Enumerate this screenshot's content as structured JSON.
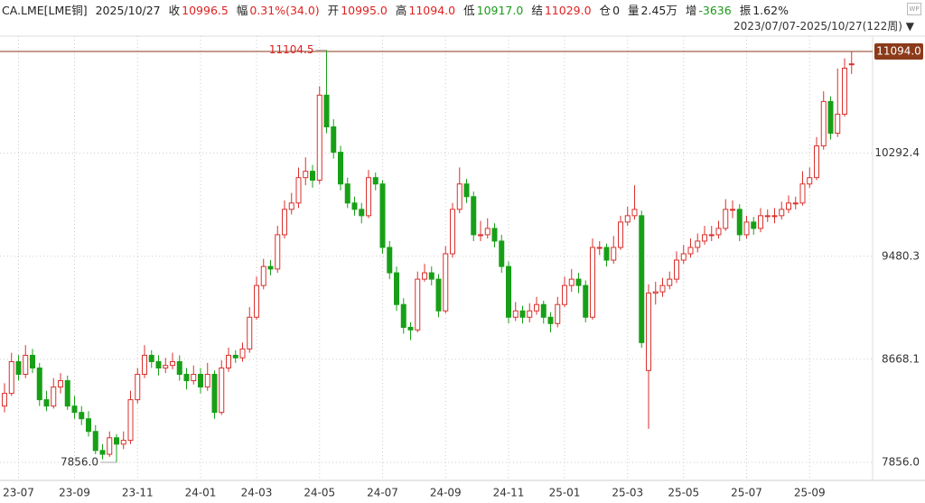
{
  "header": {
    "symbol": "CA.LME[LME铜]",
    "date": "2025/10/27",
    "fields": [
      {
        "label": "收",
        "value": "10996.5",
        "tone": "red"
      },
      {
        "label": "幅",
        "value": "0.31%(34.0)",
        "tone": "red"
      },
      {
        "label": "开",
        "value": "10995.0",
        "tone": "red"
      },
      {
        "label": "高",
        "value": "11094.0",
        "tone": "red"
      },
      {
        "label": "低",
        "value": "10917.0",
        "tone": "green"
      },
      {
        "label": "结",
        "value": "11029.0",
        "tone": "red"
      },
      {
        "label": "仓",
        "value": "0",
        "tone": "plain"
      },
      {
        "label": "量",
        "value": "2.45万",
        "tone": "plain"
      },
      {
        "label": "增",
        "value": "-3636",
        "tone": "green"
      },
      {
        "label": "振",
        "value": "1.62%",
        "tone": "plain"
      }
    ],
    "range": "2023/07/07-2025/10/27(122周)"
  },
  "chart_data": {
    "type": "candlestick",
    "up_color": "#d9302c",
    "down_color": "#17a017",
    "grid": true,
    "ylim": [
      7714,
      11215
    ],
    "yticks": [
      {
        "value": 7856,
        "label": "7856.0"
      },
      {
        "value": 8668.1,
        "label": "8668.1"
      },
      {
        "value": 9480.3,
        "label": "9480.3"
      },
      {
        "value": 10292.4,
        "label": "10292.4"
      }
    ],
    "reference_line": {
      "value": 11094,
      "label": "11094.0",
      "color": "#8b3a1a"
    },
    "max_annotation": {
      "value": 11104.5,
      "label": "11104.5",
      "index": 46
    },
    "min_annotation": {
      "value": 7856,
      "label": "7856.0",
      "index": 16
    },
    "categories": [
      null,
      null,
      "23-07",
      null,
      null,
      null,
      null,
      null,
      null,
      null,
      "23-09",
      null,
      null,
      null,
      null,
      null,
      null,
      null,
      null,
      "23-11",
      null,
      null,
      null,
      null,
      null,
      null,
      null,
      null,
      "24-01",
      null,
      null,
      null,
      null,
      null,
      null,
      null,
      "24-03",
      null,
      null,
      null,
      null,
      null,
      null,
      null,
      null,
      "24-05",
      null,
      null,
      null,
      null,
      null,
      null,
      null,
      null,
      "24-07",
      null,
      null,
      null,
      null,
      null,
      null,
      null,
      null,
      "24-09",
      null,
      null,
      null,
      null,
      null,
      null,
      null,
      null,
      "24-11",
      null,
      null,
      null,
      null,
      null,
      null,
      null,
      "25-01",
      null,
      null,
      null,
      null,
      null,
      null,
      null,
      null,
      "25-03",
      null,
      null,
      null,
      null,
      null,
      null,
      null,
      "25-05",
      null,
      null,
      null,
      null,
      null,
      null,
      null,
      null,
      "25-07",
      null,
      null,
      null,
      null,
      null,
      null,
      null,
      null,
      "25-09",
      null,
      null,
      null,
      null,
      null,
      null
    ],
    "ohlc": [
      [
        8300,
        8480,
        8250,
        8400
      ],
      [
        8400,
        8720,
        8380,
        8650
      ],
      [
        8650,
        8700,
        8500,
        8550
      ],
      [
        8550,
        8780,
        8520,
        8700
      ],
      [
        8700,
        8750,
        8560,
        8600
      ],
      [
        8600,
        8640,
        8300,
        8350
      ],
      [
        8350,
        8420,
        8260,
        8300
      ],
      [
        8300,
        8520,
        8280,
        8450
      ],
      [
        8450,
        8560,
        8400,
        8500
      ],
      [
        8500,
        8540,
        8270,
        8300
      ],
      [
        8300,
        8380,
        8200,
        8250
      ],
      [
        8250,
        8300,
        8150,
        8200
      ],
      [
        8200,
        8260,
        8060,
        8100
      ],
      [
        8100,
        8150,
        7920,
        7950
      ],
      [
        7950,
        8000,
        7880,
        7920
      ],
      [
        7920,
        8100,
        7900,
        8050
      ],
      [
        8050,
        8080,
        7856,
        8000
      ],
      [
        8000,
        8100,
        7960,
        8030
      ],
      [
        8030,
        8420,
        8000,
        8350
      ],
      [
        8350,
        8600,
        8320,
        8550
      ],
      [
        8550,
        8780,
        8520,
        8700
      ],
      [
        8700,
        8740,
        8600,
        8650
      ],
      [
        8650,
        8700,
        8540,
        8600
      ],
      [
        8600,
        8680,
        8560,
        8620
      ],
      [
        8620,
        8720,
        8590,
        8650
      ],
      [
        8650,
        8700,
        8500,
        8550
      ],
      [
        8550,
        8600,
        8430,
        8500
      ],
      [
        8500,
        8620,
        8470,
        8550
      ],
      [
        8550,
        8600,
        8400,
        8450
      ],
      [
        8450,
        8640,
        8420,
        8550
      ],
      [
        8550,
        8580,
        8200,
        8250
      ],
      [
        8250,
        8660,
        8230,
        8600
      ],
      [
        8600,
        8760,
        8570,
        8700
      ],
      [
        8700,
        8740,
        8640,
        8680
      ],
      [
        8680,
        8800,
        8650,
        8750
      ],
      [
        8750,
        9080,
        8720,
        9000
      ],
      [
        9000,
        9320,
        8980,
        9250
      ],
      [
        9250,
        9460,
        9220,
        9400
      ],
      [
        9400,
        9450,
        9330,
        9380
      ],
      [
        9380,
        9720,
        9350,
        9650
      ],
      [
        9650,
        9920,
        9620,
        9850
      ],
      [
        9850,
        9980,
        9810,
        9900
      ],
      [
        9900,
        10180,
        9860,
        10100
      ],
      [
        10100,
        10260,
        10040,
        10150
      ],
      [
        10150,
        10200,
        10020,
        10080
      ],
      [
        10080,
        10820,
        10050,
        10750
      ],
      [
        10750,
        11104.5,
        10450,
        10500
      ],
      [
        10500,
        10560,
        10250,
        10300
      ],
      [
        10300,
        10350,
        10000,
        10050
      ],
      [
        10050,
        10100,
        9860,
        9900
      ],
      [
        9900,
        9950,
        9800,
        9850
      ],
      [
        9850,
        9900,
        9740,
        9800
      ],
      [
        9800,
        10160,
        9780,
        10100
      ],
      [
        10100,
        10140,
        10000,
        10050
      ],
      [
        10050,
        10080,
        9500,
        9550
      ],
      [
        9550,
        9600,
        9300,
        9350
      ],
      [
        9350,
        9400,
        9050,
        9100
      ],
      [
        9100,
        9150,
        8870,
        8920
      ],
      [
        8920,
        8960,
        8820,
        8900
      ],
      [
        8900,
        9360,
        8880,
        9300
      ],
      [
        9300,
        9420,
        9280,
        9350
      ],
      [
        9350,
        9400,
        9250,
        9300
      ],
      [
        9300,
        9340,
        9000,
        9050
      ],
      [
        9050,
        9560,
        9030,
        9500
      ],
      [
        9500,
        9900,
        9470,
        9850
      ],
      [
        9850,
        10180,
        9820,
        10050
      ],
      [
        10050,
        10090,
        9900,
        9950
      ],
      [
        9950,
        9990,
        9600,
        9650
      ],
      [
        9650,
        9760,
        9600,
        9650
      ],
      [
        9650,
        9780,
        9620,
        9700
      ],
      [
        9700,
        9740,
        9550,
        9600
      ],
      [
        9600,
        9650,
        9350,
        9400
      ],
      [
        9400,
        9440,
        8950,
        9000
      ],
      [
        9000,
        9120,
        8970,
        9050
      ],
      [
        9050,
        9090,
        8950,
        9000
      ],
      [
        9000,
        9110,
        8960,
        9050
      ],
      [
        9050,
        9160,
        9020,
        9100
      ],
      [
        9100,
        9130,
        8950,
        9000
      ],
      [
        9000,
        9040,
        8880,
        8950
      ],
      [
        8950,
        9160,
        8920,
        9100
      ],
      [
        9100,
        9320,
        9080,
        9250
      ],
      [
        9250,
        9380,
        9200,
        9300
      ],
      [
        9300,
        9350,
        9190,
        9250
      ],
      [
        9250,
        9290,
        8960,
        9000
      ],
      [
        9000,
        9620,
        8980,
        9550
      ],
      [
        9550,
        9600,
        9490,
        9550
      ],
      [
        9550,
        9580,
        9400,
        9450
      ],
      [
        9450,
        9640,
        9420,
        9550
      ],
      [
        9550,
        9800,
        9530,
        9750
      ],
      [
        9750,
        9870,
        9720,
        9800
      ],
      [
        9800,
        10040,
        9770,
        9850
      ],
      [
        9800,
        9840,
        8760,
        8800
      ],
      [
        8580,
        9260,
        8120,
        9190
      ],
      [
        9190,
        9280,
        9100,
        9200
      ],
      [
        9200,
        9310,
        9160,
        9250
      ],
      [
        9250,
        9360,
        9220,
        9300
      ],
      [
        9300,
        9520,
        9270,
        9450
      ],
      [
        9450,
        9570,
        9420,
        9500
      ],
      [
        9500,
        9620,
        9470,
        9550
      ],
      [
        9550,
        9660,
        9510,
        9600
      ],
      [
        9600,
        9720,
        9570,
        9650
      ],
      [
        9650,
        9720,
        9600,
        9650
      ],
      [
        9650,
        9760,
        9620,
        9700
      ],
      [
        9700,
        9930,
        9680,
        9850
      ],
      [
        9850,
        9920,
        9780,
        9850
      ],
      [
        9850,
        9890,
        9600,
        9650
      ],
      [
        9650,
        9800,
        9620,
        9750
      ],
      [
        9750,
        9790,
        9650,
        9700
      ],
      [
        9700,
        9860,
        9670,
        9800
      ],
      [
        9800,
        9850,
        9750,
        9800
      ],
      [
        9800,
        9860,
        9740,
        9800
      ],
      [
        9800,
        9910,
        9770,
        9850
      ],
      [
        9850,
        9960,
        9820,
        9900
      ],
      [
        9900,
        9950,
        9850,
        9900
      ],
      [
        9900,
        10150,
        9880,
        10050
      ],
      [
        10050,
        10180,
        10020,
        10100
      ],
      [
        10100,
        10420,
        10080,
        10350
      ],
      [
        10350,
        10780,
        10320,
        10700
      ],
      [
        10700,
        10740,
        10400,
        10450
      ],
      [
        10450,
        10960,
        10420,
        10600
      ],
      [
        10600,
        11040,
        10580,
        10962.5
      ],
      [
        10995,
        11094,
        10917,
        10996.5
      ]
    ]
  }
}
